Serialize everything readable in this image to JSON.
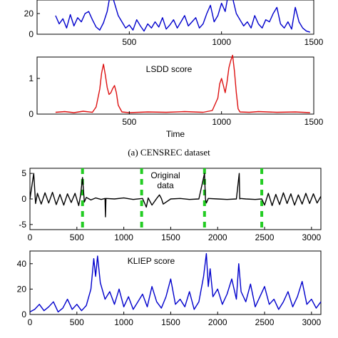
{
  "chart_data": [
    {
      "type": "line",
      "xlim": [
        0,
        1500
      ],
      "ylim": [
        0,
        40
      ],
      "xticks": [
        500,
        1000,
        1500
      ],
      "yticks": [
        0,
        20
      ],
      "xlabel": "",
      "annotation": "",
      "series": [
        {
          "color": "#0000cc",
          "x": [
            100,
            120,
            140,
            160,
            180,
            200,
            220,
            240,
            260,
            280,
            300,
            320,
            340,
            360,
            380,
            400,
            420,
            440,
            460,
            480,
            500,
            520,
            540,
            560,
            580,
            600,
            620,
            640,
            660,
            680,
            700,
            720,
            740,
            760,
            780,
            800,
            820,
            840,
            860,
            880,
            900,
            920,
            940,
            960,
            980,
            1000,
            1020,
            1040,
            1060,
            1080,
            1100,
            1120,
            1140,
            1160,
            1180,
            1200,
            1220,
            1240,
            1260,
            1280,
            1300,
            1320,
            1340,
            1360,
            1380,
            1400,
            1420,
            1440,
            1460,
            1480
          ],
          "y": [
            18,
            10,
            15,
            6,
            19,
            8,
            16,
            12,
            20,
            22,
            14,
            7,
            4,
            11,
            22,
            42,
            30,
            18,
            12,
            6,
            9,
            4,
            14,
            8,
            3,
            10,
            6,
            12,
            7,
            16,
            5,
            9,
            14,
            6,
            12,
            18,
            8,
            12,
            16,
            6,
            10,
            20,
            28,
            12,
            18,
            30,
            22,
            42,
            35,
            20,
            14,
            8,
            12,
            6,
            18,
            10,
            6,
            14,
            12,
            20,
            26,
            10,
            6,
            12,
            5,
            26,
            12,
            6,
            3,
            2
          ]
        }
      ]
    },
    {
      "type": "line",
      "xlim": [
        0,
        1500
      ],
      "ylim": [
        0,
        1.6
      ],
      "xticks": [
        500,
        1000,
        1500
      ],
      "yticks": [
        0,
        1
      ],
      "xlabel": "Time",
      "annotation": "LSDD score",
      "series": [
        {
          "color": "#dd1111",
          "x": [
            100,
            150,
            200,
            250,
            300,
            320,
            340,
            350,
            360,
            370,
            380,
            390,
            400,
            410,
            420,
            430,
            440,
            460,
            480,
            500,
            600,
            700,
            800,
            900,
            950,
            980,
            990,
            1000,
            1010,
            1020,
            1030,
            1040,
            1050,
            1060,
            1070,
            1080,
            1090,
            1100,
            1150,
            1200,
            1300,
            1400,
            1480
          ],
          "y": [
            0.05,
            0.07,
            0.04,
            0.08,
            0.05,
            0.2,
            0.7,
            1.15,
            1.4,
            1.1,
            0.75,
            0.55,
            0.6,
            0.72,
            0.8,
            0.6,
            0.25,
            0.06,
            0.05,
            0.04,
            0.06,
            0.05,
            0.07,
            0.05,
            0.1,
            0.45,
            0.85,
            1.0,
            0.8,
            0.6,
            0.9,
            1.3,
            1.5,
            1.65,
            1.2,
            0.6,
            0.15,
            0.06,
            0.05,
            0.07,
            0.05,
            0.06,
            0.04
          ]
        }
      ]
    },
    {
      "type": "line",
      "xlim": [
        0,
        3100
      ],
      "ylim": [
        -6,
        6
      ],
      "xticks": [
        0,
        500,
        1000,
        1500,
        2000,
        2500,
        3000
      ],
      "yticks": [
        -5,
        0,
        5
      ],
      "xlabel": "",
      "annotation": "Original\ndata",
      "change_points": [
        560,
        1190,
        1860,
        2470
      ],
      "series": [
        {
          "color": "#000000",
          "x": [
            0,
            40,
            60,
            80,
            120,
            160,
            200,
            240,
            280,
            320,
            360,
            400,
            440,
            480,
            520,
            540,
            560,
            580,
            600,
            650,
            700,
            760,
            800,
            805,
            810,
            900,
            1000,
            1100,
            1200,
            1240,
            1260,
            1300,
            1350,
            1380,
            1400,
            1420,
            1500,
            1600,
            1700,
            1800,
            1860,
            1870,
            1880,
            1900,
            2000,
            2100,
            2200,
            2230,
            2235,
            2240,
            2300,
            2400,
            2470,
            2500,
            2540,
            2580,
            2620,
            2660,
            2700,
            2740,
            2780,
            2820,
            2860,
            2900,
            2940,
            2980,
            3020,
            3060,
            3100
          ],
          "y": [
            0,
            5,
            -0.9,
            1.1,
            -1.0,
            1.2,
            -0.8,
            1.3,
            -1.1,
            0.9,
            -1.2,
            1.0,
            -0.7,
            1.1,
            -1.3,
            0.8,
            4.2,
            -0.6,
            0.3,
            -0.2,
            0.2,
            -0.1,
            0.1,
            -3.5,
            0.1,
            0,
            0.2,
            -0.1,
            0.1,
            -1.6,
            0.2,
            -1.2,
            0.1,
            0.8,
            0.1,
            -1.0,
            0,
            0.1,
            -0.1,
            0,
            5,
            0,
            -0.8,
            0.1,
            0,
            -0.1,
            0,
            5,
            0,
            0.1,
            0,
            -0.1,
            0,
            -1.2,
            1.1,
            -1.3,
            0.9,
            -1.1,
            1.2,
            -0.9,
            1.0,
            -1.2,
            0.8,
            -1.0,
            1.1,
            -0.9,
            1.0,
            -0.8,
            0.5
          ]
        }
      ]
    },
    {
      "type": "line",
      "xlim": [
        0,
        3100
      ],
      "ylim": [
        0,
        50
      ],
      "xticks": [
        0,
        500,
        1000,
        1500,
        2000,
        2500,
        3000
      ],
      "yticks": [
        0,
        20,
        40
      ],
      "xlabel": "",
      "annotation": "KLIEP score",
      "series": [
        {
          "color": "#0000cc",
          "x": [
            0,
            50,
            100,
            150,
            200,
            250,
            300,
            350,
            400,
            450,
            500,
            550,
            600,
            650,
            680,
            700,
            720,
            750,
            800,
            850,
            900,
            950,
            1000,
            1050,
            1100,
            1150,
            1200,
            1250,
            1300,
            1350,
            1400,
            1450,
            1500,
            1550,
            1600,
            1650,
            1700,
            1750,
            1800,
            1850,
            1880,
            1900,
            1920,
            1950,
            2000,
            2050,
            2100,
            2150,
            2200,
            2225,
            2250,
            2300,
            2350,
            2400,
            2450,
            2500,
            2550,
            2600,
            2650,
            2700,
            2750,
            2800,
            2850,
            2900,
            2950,
            3000,
            3050,
            3100
          ],
          "y": [
            2,
            4,
            8,
            3,
            6,
            10,
            2,
            5,
            12,
            4,
            8,
            3,
            7,
            20,
            44,
            30,
            46,
            25,
            12,
            18,
            8,
            20,
            6,
            14,
            4,
            10,
            16,
            6,
            22,
            10,
            5,
            14,
            28,
            8,
            12,
            6,
            18,
            4,
            10,
            30,
            48,
            22,
            36,
            14,
            20,
            8,
            16,
            28,
            12,
            40,
            18,
            10,
            24,
            6,
            14,
            22,
            8,
            12,
            4,
            10,
            18,
            6,
            14,
            26,
            8,
            12,
            5,
            10
          ]
        }
      ]
    }
  ],
  "caption_top": "(a) CENSREC dataset",
  "caption_bottom_partial": ""
}
